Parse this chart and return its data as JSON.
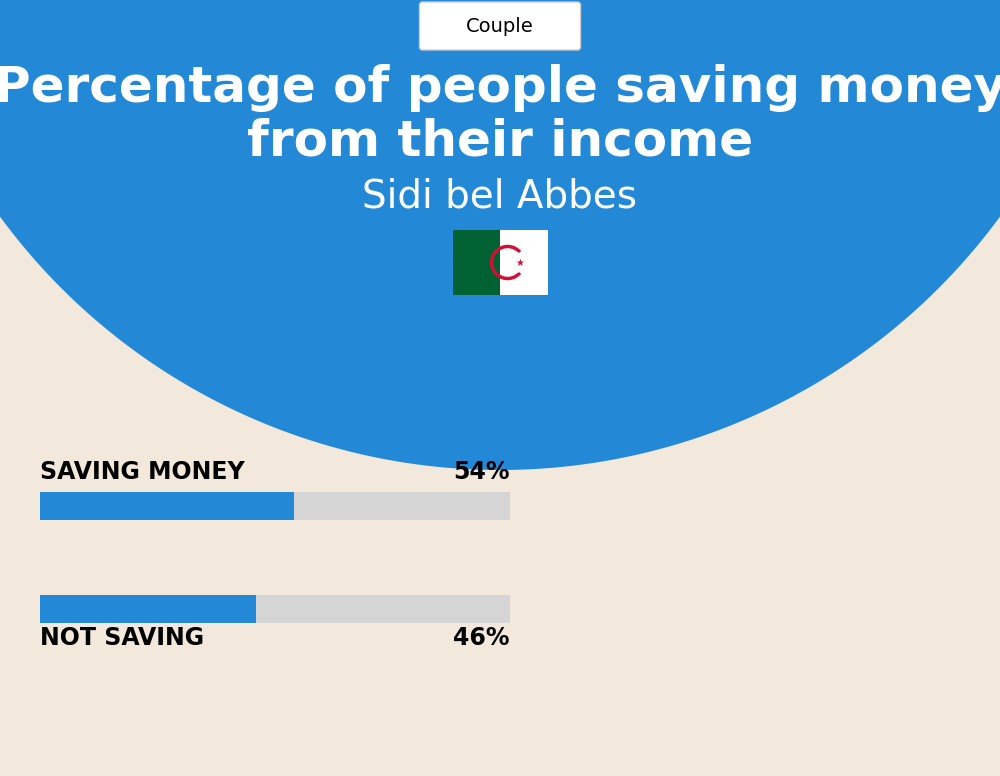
{
  "title_line1": "Percentage of people saving money",
  "title_line2": "from their income",
  "subtitle": "Sidi bel Abbes",
  "tab_label": "Couple",
  "background_color": "#F2E8DC",
  "header_color": "#2389D7",
  "bar_color": "#2389D7",
  "bar_bg_color": "#D5D5D5",
  "categories": [
    "SAVING MONEY",
    "NOT SAVING"
  ],
  "values": [
    54,
    46
  ],
  "bar_total": 100,
  "text_color_dark": "#000000",
  "title_color": "#ffffff",
  "subtitle_color": "#ffffff",
  "figsize": [
    10.0,
    7.76
  ],
  "dpi": 100,
  "tab_border_color": "#cccccc",
  "flag_green": "#006233",
  "flag_red": "#D21034"
}
